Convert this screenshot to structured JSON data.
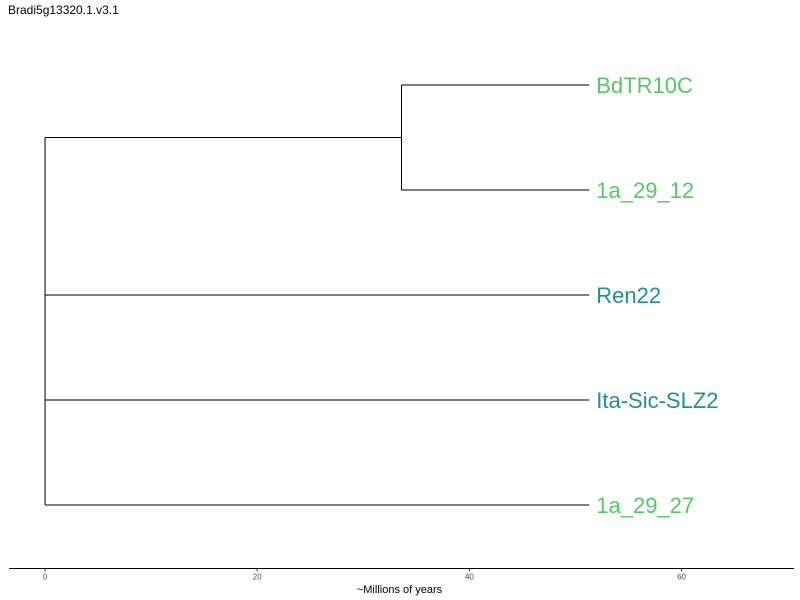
{
  "title": "Bradi5g13320.1.v3.1",
  "axis": {
    "label": "~Millions of years",
    "ticks": [
      0,
      20,
      40,
      60
    ],
    "range": [
      -3.4,
      70.6
    ]
  },
  "colors": {
    "light_green": "#57c766",
    "teal": "#23918b",
    "branch": "#000000"
  },
  "tree": {
    "leaves": [
      {
        "name": "BdTR10C",
        "color": "#57c766"
      },
      {
        "name": "1a_29_12",
        "color": "#57c766"
      },
      {
        "name": "Ren22",
        "color": "#23918b"
      },
      {
        "name": "Ita-Sic-SLZ2",
        "color": "#23918b"
      },
      {
        "name": "1a_29_27",
        "color": "#57c766"
      }
    ],
    "clade_age": 33.6,
    "tip_age": 51.3
  }
}
